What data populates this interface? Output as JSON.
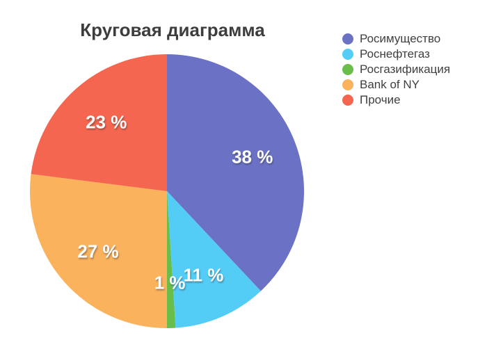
{
  "title": "Круговая диаграмма",
  "chart_data": {
    "type": "pie",
    "title": "Круговая диаграмма",
    "categories": [
      "Росимущество",
      "Роснефтегаз",
      "Росгазификация",
      "Bank of NY",
      "Прочие"
    ],
    "values": [
      38,
      11,
      1,
      27,
      23
    ],
    "slice_labels": [
      "38 %",
      "11 %",
      "1 %",
      "27 %",
      "23 %"
    ],
    "colors": [
      "#6B72C6",
      "#54CDF6",
      "#69BD4A",
      "#FAB25D",
      "#F4664F"
    ],
    "start_angle_deg": 0,
    "direction": "clockwise",
    "legend_position": "top-right",
    "label_radius_fraction": 0.67
  },
  "style": {
    "background": "#ffffff",
    "title_color": "#3d3d3d",
    "legend_text_color": "#3f3f3f",
    "slice_label_color": "#ffffff"
  }
}
